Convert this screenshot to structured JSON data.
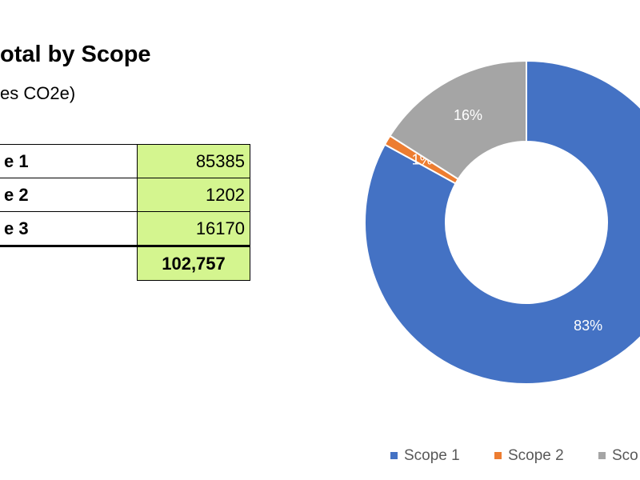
{
  "title": "otal by Scope",
  "subtitle": "es CO2e)",
  "table": {
    "rows": [
      [
        "e 1",
        85385
      ],
      [
        "e 2",
        1202
      ],
      [
        "e 3",
        16170
      ]
    ],
    "total": "102,757"
  },
  "chart_data": {
    "type": "pie",
    "categories": [
      "Scope 1",
      "Scope 2",
      "Sco"
    ],
    "values": [
      83,
      1,
      16
    ],
    "value_labels": [
      "83%",
      "1%",
      "16%"
    ],
    "colors": [
      "#4472c4",
      "#ed7d31",
      "#a5a5a5"
    ],
    "hole": 0.5,
    "legend": "bottom"
  }
}
